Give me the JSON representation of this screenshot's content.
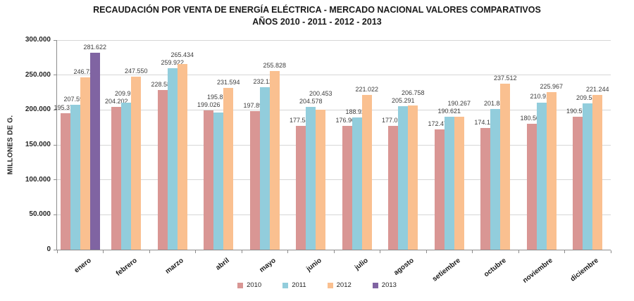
{
  "title": {
    "line1": "RECAUDACIÓN POR VENTA DE ENERGÍA ELÉCTRICA - MERCADO NACIONAL VALORES COMPARATIVOS",
    "line2": "AÑOS 2010 - 2011 - 2012 - 2013"
  },
  "y_axis": {
    "title": "MILLONES DE G.",
    "ticks": [
      {
        "label": "300.000",
        "value": 300000
      },
      {
        "label": "250.000",
        "value": 250000
      },
      {
        "label": "200.000",
        "value": 200000
      },
      {
        "label": "150.000",
        "value": 150000
      },
      {
        "label": "100.000",
        "value": 100000
      },
      {
        "label": "50.000",
        "value": 50000
      },
      {
        "label": "0",
        "value": 0
      }
    ]
  },
  "chart_data": {
    "type": "bar",
    "title": "RECAUDACIÓN POR VENTA DE ENERGÍA ELÉCTRICA - MERCADO NACIONAL VALORES COMPARATIVOS AÑOS 2010 - 2011 - 2012 - 2013",
    "xlabel": "",
    "ylabel": "MILLONES DE G.",
    "ylim": [
      0,
      300000
    ],
    "grid": true,
    "legend_position": "bottom",
    "categories": [
      "enero",
      "febrero",
      "marzo",
      "abril",
      "mayo",
      "junio",
      "julio",
      "agosto",
      "setiembre",
      "octubre",
      "noviembre",
      "diciembre"
    ],
    "series": [
      {
        "name": "2010",
        "color": "#D99694",
        "values": [
          195372,
          204202,
          228587,
          199026,
          197896,
          177540,
          176905,
          177095,
          172470,
          174116,
          180507,
          190584
        ],
        "labels": [
          "195.372",
          "204.202",
          "228.587",
          "199.026",
          "197.896",
          "177.540",
          "176.905",
          "177.095",
          "172.470",
          "174.116",
          "180.507",
          "190.584"
        ]
      },
      {
        "name": "2011",
        "color": "#92CDDC",
        "values": [
          207591,
          209969,
          259922,
          195893,
          232125,
          204578,
          188922,
          205291,
          190621,
          201844,
          210913,
          209546
        ],
        "labels": [
          "207.591",
          "209.969",
          "259.922",
          "195.893",
          "232.125",
          "204.578",
          "188.922",
          "205.291",
          "190.621",
          "201.844",
          "210.913",
          "209.546"
        ]
      },
      {
        "name": "2012",
        "color": "#FAC090",
        "values": [
          246727,
          247550,
          265434,
          231594,
          255828,
          200453,
          221022,
          206758,
          190267,
          237512,
          225967,
          221244
        ],
        "labels": [
          "246.727",
          "247.550",
          "265.434",
          "231.594",
          "255.828",
          "200.453",
          "221.022",
          "206.758",
          "190.267",
          "237.512",
          "225.967",
          "221.244"
        ]
      },
      {
        "name": "2013",
        "color": "#8064A2",
        "values": [
          281622,
          null,
          null,
          null,
          null,
          null,
          null,
          null,
          null,
          null,
          null,
          null
        ],
        "labels": [
          "281.622",
          null,
          null,
          null,
          null,
          null,
          null,
          null,
          null,
          null,
          null,
          null
        ]
      }
    ]
  },
  "legend": {
    "items": [
      {
        "label": "2010",
        "color": "#D99694"
      },
      {
        "label": "2011",
        "color": "#92CDDC"
      },
      {
        "label": "2012",
        "color": "#FAC090"
      },
      {
        "label": "2013",
        "color": "#8064A2"
      }
    ]
  }
}
